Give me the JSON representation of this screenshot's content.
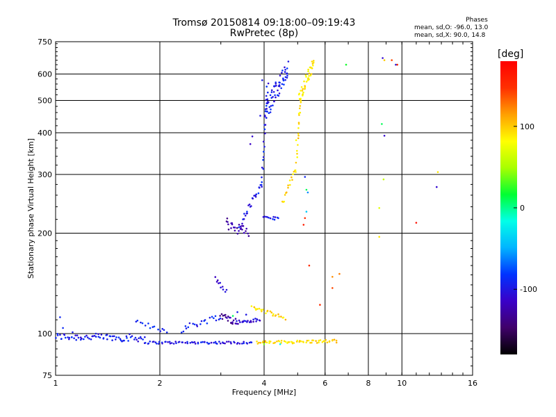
{
  "header": {
    "title": "Tromsø 20150814 09:18:00–09:19:43",
    "subtitle": "RwPretec (8p)"
  },
  "phases_box": {
    "heading": "Phases",
    "line1": "mean, sd,O: -96.0, 13.0",
    "line2": "mean, sd,X:  90.0, 14.8"
  },
  "colorbar": {
    "unit_label": "[deg]",
    "ticks": [
      {
        "value": 100,
        "label": "100"
      },
      {
        "value": 0,
        "label": "0"
      },
      {
        "value": -100,
        "label": "-100"
      }
    ],
    "range": [
      -180,
      180
    ],
    "stops": [
      "#000000",
      "#40006a",
      "#3a00c8",
      "#0033ff",
      "#00b4ff",
      "#00ffe8",
      "#00ff33",
      "#a8ff00",
      "#ffff00",
      "#ffa000",
      "#ff3000",
      "#ff0000"
    ]
  },
  "chart_data": {
    "type": "scatter",
    "title": "Tromsø 20150814 09:18:00–09:19:43",
    "subtitle": "RwPretec (8p)",
    "xlabel": "Frequency [MHz]",
    "ylabel": "Stationary phase Virtual Height [km]",
    "x_scale": "log",
    "y_scale": "log",
    "xlim": [
      1,
      16
    ],
    "ylim": [
      75,
      750
    ],
    "x_ticks": [
      {
        "value": 1,
        "label": "1"
      },
      {
        "value": 2,
        "label": "2"
      },
      {
        "value": 4,
        "label": "4"
      },
      {
        "value": 6,
        "label": "6"
      },
      {
        "value": 8,
        "label": "8"
      },
      {
        "value": 10,
        "label": "10"
      },
      {
        "value": 16,
        "label": "16"
      }
    ],
    "y_ticks": [
      {
        "value": 75,
        "label": "75"
      },
      {
        "value": 100,
        "label": "100"
      },
      {
        "value": 200,
        "label": "200"
      },
      {
        "value": 300,
        "label": "300"
      },
      {
        "value": 400,
        "label": "400"
      },
      {
        "value": 500,
        "label": "500"
      },
      {
        "value": 600,
        "label": "600"
      },
      {
        "value": 750,
        "label": "750"
      }
    ],
    "grid": true,
    "color_encoding": "phase (deg)",
    "traces": [
      {
        "x0": 1.0,
        "x1": 1.8,
        "y0": 98,
        "y1": 97,
        "phase": -96,
        "jitter": 2.5,
        "n": 70
      },
      {
        "x0": 1.8,
        "x1": 3.7,
        "y0": 94,
        "y1": 94,
        "phase": -100,
        "jitter": 0.8,
        "n": 70
      },
      {
        "x0": 3.8,
        "x1": 6.5,
        "y0": 94,
        "y1": 95,
        "phase": 95,
        "jitter": 1.0,
        "n": 60
      },
      {
        "x0": 1.7,
        "x1": 2.1,
        "y0": 108,
        "y1": 102,
        "phase": -92,
        "jitter": 2.0,
        "n": 14
      },
      {
        "x0": 2.3,
        "x1": 3.0,
        "y0": 103,
        "y1": 113,
        "phase": -95,
        "jitter": 2.5,
        "n": 22
      },
      {
        "x0": 2.9,
        "x1": 3.1,
        "y0": 145,
        "y1": 135,
        "phase": -105,
        "jitter": 4.0,
        "n": 10
      },
      {
        "x0": 3.0,
        "x1": 3.3,
        "y0": 113,
        "y1": 109,
        "phase": -125,
        "jitter": 2.5,
        "n": 18
      },
      {
        "x0": 3.3,
        "x1": 3.9,
        "y0": 108,
        "y1": 110,
        "phase": -110,
        "jitter": 1.5,
        "n": 24
      },
      {
        "x0": 3.7,
        "x1": 4.6,
        "y0": 120,
        "y1": 111,
        "phase": 95,
        "jitter": 1.5,
        "n": 24
      },
      {
        "x0": 3.1,
        "x1": 3.6,
        "y0": 215,
        "y1": 200,
        "phase": -125,
        "jitter": 8.0,
        "n": 26
      },
      {
        "x0": 3.4,
        "x1": 3.95,
        "y0": 210,
        "y1": 280,
        "phase": -95,
        "jitter": 6.0,
        "n": 26
      },
      {
        "x0": 3.95,
        "x1": 4.1,
        "y0": 280,
        "y1": 560,
        "phase": -95,
        "jitter": 10.0,
        "n": 24
      },
      {
        "x0": 4.05,
        "x1": 4.7,
        "y0": 470,
        "y1": 620,
        "phase": -95,
        "jitter": 35.0,
        "n": 60
      },
      {
        "x0": 4.0,
        "x1": 4.4,
        "y0": 222,
        "y1": 222,
        "phase": -95,
        "jitter": 2.5,
        "n": 12
      },
      {
        "x0": 4.5,
        "x1": 4.95,
        "y0": 245,
        "y1": 310,
        "phase": 95,
        "jitter": 5.0,
        "n": 16
      },
      {
        "x0": 4.95,
        "x1": 5.1,
        "y0": 310,
        "y1": 500,
        "phase": 92,
        "jitter": 10.0,
        "n": 18
      },
      {
        "x0": 5.05,
        "x1": 5.55,
        "y0": 500,
        "y1": 650,
        "phase": 90,
        "jitter": 25.0,
        "n": 42
      }
    ],
    "points": [
      {
        "x": 1.03,
        "y": 112,
        "phase": -90
      },
      {
        "x": 1.05,
        "y": 104,
        "phase": -88
      },
      {
        "x": 1.12,
        "y": 101,
        "phase": -95
      },
      {
        "x": 3.25,
        "y": 113,
        "phase": 8
      },
      {
        "x": 3.55,
        "y": 114,
        "phase": -100
      },
      {
        "x": 3.35,
        "y": 116,
        "phase": -95
      },
      {
        "x": 3.7,
        "y": 390,
        "phase": -110
      },
      {
        "x": 3.65,
        "y": 370,
        "phase": -115
      },
      {
        "x": 3.9,
        "y": 450,
        "phase": -100
      },
      {
        "x": 3.95,
        "y": 575,
        "phase": -100
      },
      {
        "x": 4.95,
        "y": 380,
        "phase": 80
      },
      {
        "x": 5.25,
        "y": 295,
        "phase": -90
      },
      {
        "x": 5.3,
        "y": 270,
        "phase": 10
      },
      {
        "x": 5.35,
        "y": 265,
        "phase": -60
      },
      {
        "x": 5.3,
        "y": 232,
        "phase": -40
      },
      {
        "x": 5.25,
        "y": 222,
        "phase": 150
      },
      {
        "x": 5.2,
        "y": 212,
        "phase": 160
      },
      {
        "x": 5.4,
        "y": 160,
        "phase": 150
      },
      {
        "x": 5.8,
        "y": 122,
        "phase": 150
      },
      {
        "x": 6.3,
        "y": 148,
        "phase": 120
      },
      {
        "x": 6.6,
        "y": 151,
        "phase": 125
      },
      {
        "x": 6.3,
        "y": 137,
        "phase": 140
      },
      {
        "x": 6.9,
        "y": 640,
        "phase": 20
      },
      {
        "x": 8.6,
        "y": 238,
        "phase": 70
      },
      {
        "x": 8.6,
        "y": 195,
        "phase": 90
      },
      {
        "x": 8.85,
        "y": 290,
        "phase": 60
      },
      {
        "x": 8.8,
        "y": 670,
        "phase": -110
      },
      {
        "x": 8.9,
        "y": 660,
        "phase": 100
      },
      {
        "x": 9.35,
        "y": 660,
        "phase": 140
      },
      {
        "x": 9.6,
        "y": 640,
        "phase": -100
      },
      {
        "x": 9.7,
        "y": 640,
        "phase": 150
      },
      {
        "x": 8.75,
        "y": 425,
        "phase": 10
      },
      {
        "x": 8.9,
        "y": 392,
        "phase": -110
      },
      {
        "x": 11.0,
        "y": 215,
        "phase": 170
      },
      {
        "x": 12.6,
        "y": 275,
        "phase": -110
      },
      {
        "x": 12.7,
        "y": 305,
        "phase": 90
      },
      {
        "x": 4.0,
        "y": 93,
        "phase": 40
      },
      {
        "x": 4.45,
        "y": 93,
        "phase": -20
      }
    ]
  }
}
